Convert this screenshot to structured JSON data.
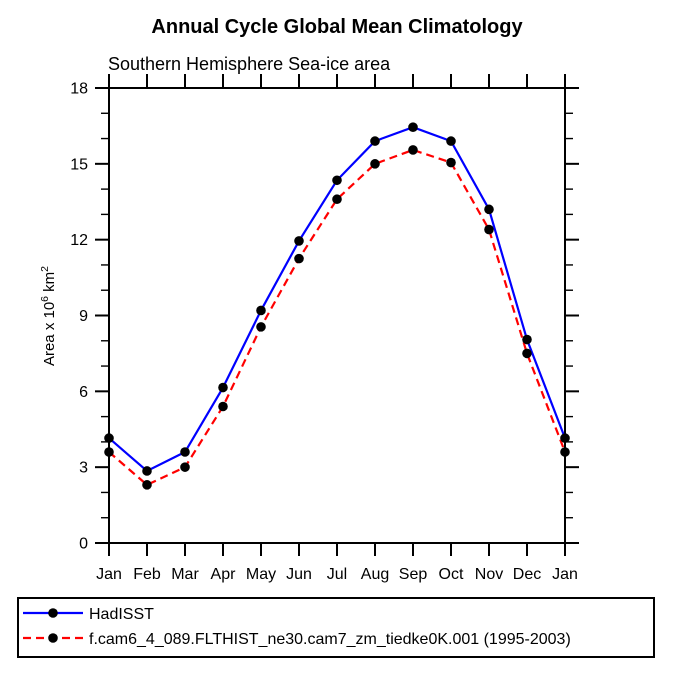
{
  "chart_data": {
    "type": "line",
    "title": "Annual Cycle Global Mean Climatology",
    "subtitle": "Southern Hemisphere Sea-ice area",
    "ylabel_parts": {
      "base": "Area x 10",
      "sup1": "6",
      "mid": " km",
      "sup2": "2"
    },
    "x_categories": [
      "Jan",
      "Feb",
      "Mar",
      "Apr",
      "May",
      "Jun",
      "Jul",
      "Aug",
      "Sep",
      "Oct",
      "Nov",
      "Dec",
      "Jan"
    ],
    "ylim": [
      0,
      18
    ],
    "y_major_ticks": [
      0,
      3,
      6,
      9,
      12,
      15,
      18
    ],
    "y_minor_step": 1,
    "grid": false,
    "legend_position": "bottom-left-box",
    "axis_color": "#000000",
    "marker_color": "#000000",
    "background_color": "#ffffff",
    "series": [
      {
        "name": "HadISST",
        "color": "#0000ff",
        "style": "solid",
        "marker": "filled-circle",
        "values": [
          4.15,
          2.85,
          3.6,
          6.15,
          9.2,
          11.95,
          14.35,
          15.9,
          16.45,
          15.9,
          13.2,
          8.05,
          4.15
        ]
      },
      {
        "name": "f.cam6_4_089.FLTHIST_ne30.cam7_zm_tiedke0K.001 (1995-2003)",
        "color": "#ff0000",
        "style": "dashed",
        "marker": "filled-circle",
        "values": [
          3.6,
          2.3,
          3.0,
          5.4,
          8.55,
          11.25,
          13.6,
          15.0,
          15.55,
          15.05,
          12.4,
          7.5,
          3.6
        ]
      }
    ]
  }
}
